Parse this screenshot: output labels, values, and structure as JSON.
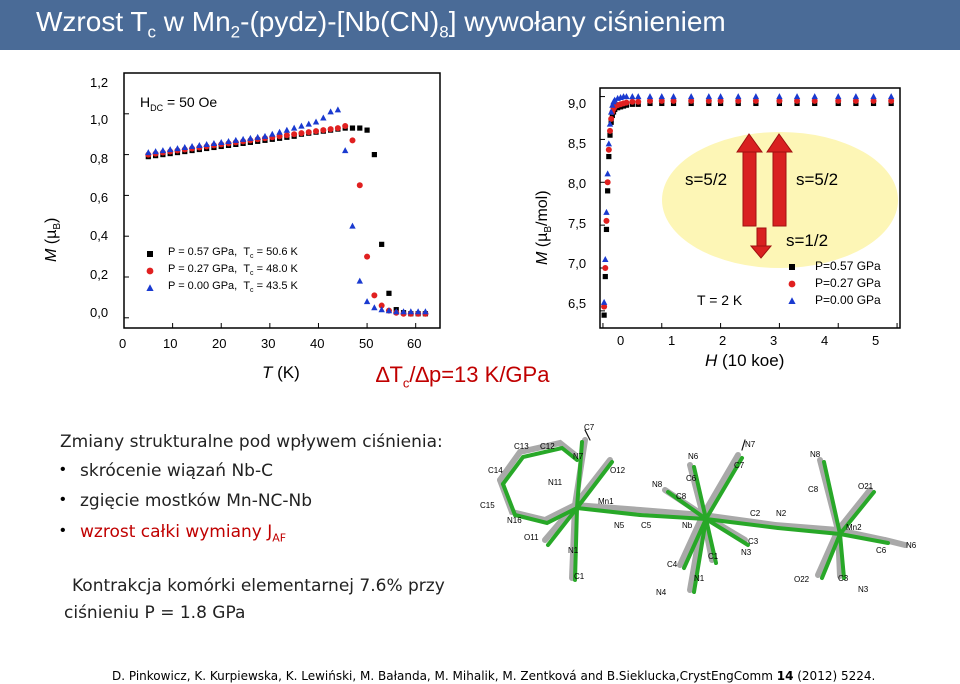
{
  "slide": {
    "title": {
      "pre": "Wzrost T",
      "sub_c": "c",
      "mid1": " w Mn",
      "sub_2": "2",
      "mid2": "-(pydz)-[Nb(CN)",
      "sub_8": "8",
      "post": "]  wywołany ciśnieniem"
    },
    "delta_tc": {
      "t": "∆T",
      "c": "c",
      "rest": "/∆p=13 K/GPa"
    },
    "changes_heading": "Zmiany strukturalne pod wpływem ciśnienia:",
    "bullets": [
      "skrócenie wiązań Nb-C",
      "zgięcie mostków Mn-NC-Nb",
      "wzrost całki wymiany J"
    ],
    "bullet3_sub": "AF",
    "contraction_line1": "Kontrakcja komórki elementarnej 7.6% przy",
    "contraction_line2": "ciśnieniu P = 1.8 GPa",
    "citation": {
      "pre": "D. Pinkowicz, K. Kurpiewska, K. Lewiński, M. Bałanda, M. Mihalik, M. Zentková and B.Sieklucka,CrystEngComm ",
      "bold": "14",
      "post": " (2012) 5224."
    },
    "colors": {
      "title_bar": "#4a6b97",
      "red_text": "#c00000",
      "oval": "#fdf6b6"
    }
  },
  "chart_data": [
    {
      "type": "scatter",
      "title": "",
      "xlabel": "T (K)",
      "ylabel": "M (µB)",
      "xlim": [
        0,
        65
      ],
      "ylim": [
        -0.05,
        1.2
      ],
      "xticks": [
        "0",
        "10",
        "20",
        "30",
        "40",
        "50",
        "60"
      ],
      "yticks": [
        "0,0",
        "0,2",
        "0,4",
        "0,6",
        "0,8",
        "1,0",
        "1,2"
      ],
      "annotation": "HDC = 50 Oe",
      "legend": [
        "P = 0.57 GPa,  Tc = 50.6 K",
        "P = 0.27 GPa,  Tc = 48.0 K",
        "P = 0.00 GPa,  Tc = 43.5 K"
      ],
      "legend_position": "bottom-left",
      "series": [
        {
          "name": "P = 0.57 GPa",
          "marker": "square",
          "color": "#000000",
          "x": [
            5,
            6.5,
            8,
            9.5,
            11,
            12.5,
            14,
            15.5,
            17,
            18.5,
            20,
            21.5,
            23,
            24.5,
            26,
            27.5,
            29,
            30.5,
            32,
            33.5,
            35,
            36.5,
            38,
            39.5,
            41,
            42.5,
            44,
            45.5,
            47,
            48.5,
            50,
            51.5,
            53,
            54.5,
            56,
            57.5,
            59,
            60.5,
            62
          ],
          "y": [
            0.79,
            0.795,
            0.8,
            0.805,
            0.81,
            0.815,
            0.82,
            0.825,
            0.83,
            0.835,
            0.84,
            0.845,
            0.85,
            0.855,
            0.86,
            0.865,
            0.87,
            0.875,
            0.88,
            0.885,
            0.89,
            0.9,
            0.905,
            0.91,
            0.915,
            0.92,
            0.925,
            0.93,
            0.93,
            0.93,
            0.92,
            0.8,
            0.36,
            0.12,
            0.04,
            0.025,
            0.02,
            0.02,
            0.02
          ]
        },
        {
          "name": "P = 0.27 GPa",
          "marker": "circle",
          "color": "#e02020",
          "x": [
            5,
            6.5,
            8,
            9.5,
            11,
            12.5,
            14,
            15.5,
            17,
            18.5,
            20,
            21.5,
            23,
            24.5,
            26,
            27.5,
            29,
            30.5,
            32,
            33.5,
            35,
            36.5,
            38,
            39.5,
            41,
            42.5,
            44,
            45.5,
            47,
            48.5,
            50,
            51.5,
            53,
            54.5,
            56,
            57.5,
            59,
            60.5,
            62
          ],
          "y": [
            0.8,
            0.805,
            0.81,
            0.815,
            0.82,
            0.825,
            0.83,
            0.835,
            0.84,
            0.845,
            0.85,
            0.855,
            0.86,
            0.865,
            0.87,
            0.875,
            0.88,
            0.885,
            0.89,
            0.895,
            0.9,
            0.905,
            0.91,
            0.915,
            0.92,
            0.925,
            0.93,
            0.94,
            0.87,
            0.65,
            0.3,
            0.11,
            0.06,
            0.035,
            0.025,
            0.02,
            0.02,
            0.02,
            0.02
          ]
        },
        {
          "name": "P = 0.00 GPa",
          "marker": "triangle",
          "color": "#1a3ad0",
          "x": [
            5,
            6.5,
            8,
            9.5,
            11,
            12.5,
            14,
            15.5,
            17,
            18.5,
            20,
            21.5,
            23,
            24.5,
            26,
            27.5,
            29,
            30.5,
            32,
            33.5,
            35,
            36.5,
            38,
            39.5,
            41,
            42.5,
            44,
            45.5,
            47,
            48.5,
            50,
            51.5,
            53,
            54.5,
            56,
            57.5,
            59,
            60.5,
            62
          ],
          "y": [
            0.81,
            0.815,
            0.82,
            0.825,
            0.83,
            0.835,
            0.84,
            0.845,
            0.85,
            0.855,
            0.86,
            0.865,
            0.87,
            0.875,
            0.88,
            0.885,
            0.89,
            0.9,
            0.91,
            0.92,
            0.93,
            0.94,
            0.95,
            0.96,
            0.98,
            1.01,
            1.02,
            0.82,
            0.45,
            0.18,
            0.08,
            0.05,
            0.04,
            0.035,
            0.03,
            0.03,
            0.03,
            0.03,
            0.03
          ]
        }
      ]
    },
    {
      "type": "scatter",
      "title": "",
      "xlabel": "H (10 kOe)",
      "ylabel": "M (µB/mol)",
      "xlim": [
        -0.05,
        5.05
      ],
      "ylim": [
        6.3,
        9.1
      ],
      "xticks": [
        "0",
        "1",
        "2",
        "3",
        "4",
        "5"
      ],
      "yticks": [
        "6,5",
        "7,0",
        "7,5",
        "8,0",
        "8,5",
        "9,0"
      ],
      "annotations": [
        "T = 2 K",
        "s=5/2",
        "s=5/2",
        "s=1/2"
      ],
      "legend": [
        "P=0.57 GPa",
        "P=0.27 GPa",
        "P=0.00 GPa"
      ],
      "legend_position": "bottom-right",
      "series": [
        {
          "name": "P=0.57 GPa",
          "marker": "square",
          "color": "#000000",
          "x": [
            0.02,
            0.04,
            0.06,
            0.08,
            0.1,
            0.12,
            0.14,
            0.16,
            0.18,
            0.2,
            0.25,
            0.3,
            0.35,
            0.4,
            0.5,
            0.6,
            0.8,
            1.0,
            1.2,
            1.5,
            1.8,
            2.0,
            2.3,
            2.6,
            3.0,
            3.3,
            3.6,
            4.0,
            4.3,
            4.6,
            4.9
          ],
          "y": [
            6.45,
            6.9,
            7.45,
            7.9,
            8.3,
            8.55,
            8.7,
            8.78,
            8.82,
            8.85,
            8.87,
            8.88,
            8.89,
            8.9,
            8.91,
            8.91,
            8.92,
            8.92,
            8.92,
            8.92,
            8.92,
            8.92,
            8.92,
            8.92,
            8.92,
            8.92,
            8.92,
            8.92,
            8.92,
            8.92,
            8.92
          ]
        },
        {
          "name": "P=0.27 GPa",
          "marker": "circle",
          "color": "#e02020",
          "x": [
            0.02,
            0.04,
            0.06,
            0.08,
            0.1,
            0.12,
            0.14,
            0.16,
            0.18,
            0.2,
            0.25,
            0.3,
            0.35,
            0.4,
            0.5,
            0.6,
            0.8,
            1.0,
            1.2,
            1.5,
            1.8,
            2.0,
            2.3,
            2.6,
            3.0,
            3.3,
            3.6,
            4.0,
            4.3,
            4.6,
            4.9
          ],
          "y": [
            6.55,
            7.0,
            7.55,
            8.0,
            8.38,
            8.6,
            8.74,
            8.82,
            8.86,
            8.88,
            8.9,
            8.91,
            8.92,
            8.93,
            8.94,
            8.94,
            8.95,
            8.95,
            8.95,
            8.95,
            8.95,
            8.95,
            8.95,
            8.95,
            8.95,
            8.95,
            8.95,
            8.95,
            8.95,
            8.95,
            8.95
          ]
        },
        {
          "name": "P=0.00 GPa",
          "marker": "triangle",
          "color": "#1a3ad0",
          "x": [
            0.02,
            0.04,
            0.06,
            0.08,
            0.1,
            0.12,
            0.14,
            0.16,
            0.18,
            0.2,
            0.25,
            0.3,
            0.35,
            0.4,
            0.5,
            0.6,
            0.8,
            1.0,
            1.2,
            1.5,
            1.8,
            2.0,
            2.3,
            2.6,
            3.0,
            3.3,
            3.6,
            4.0,
            4.3,
            4.6,
            4.9
          ],
          "y": [
            6.6,
            7.1,
            7.65,
            8.1,
            8.45,
            8.68,
            8.82,
            8.9,
            8.94,
            8.96,
            8.98,
            8.99,
            9.0,
            9.0,
            9.0,
            9.0,
            9.0,
            9.0,
            9.0,
            9.0,
            9.0,
            9.0,
            9.0,
            9.0,
            9.0,
            9.0,
            9.0,
            9.0,
            9.0,
            9.0,
            9.0
          ]
        }
      ]
    }
  ],
  "structure": {
    "labels": [
      "C7",
      "C13",
      "C12",
      "N7",
      "N6",
      "N7",
      "N8",
      "C14",
      "N11",
      "O12",
      "C6",
      "C7",
      "C8",
      "O21",
      "N8",
      "C8",
      "C2",
      "N2",
      "Mn1",
      "Mn2",
      "C15",
      "N16",
      "N5",
      "C5",
      "Nb",
      "C3",
      "C6",
      "N6",
      "O11",
      "N1",
      "C1",
      "N3",
      "C4",
      "C1",
      "N1",
      "O22",
      "C3",
      "N4",
      "N3"
    ]
  }
}
